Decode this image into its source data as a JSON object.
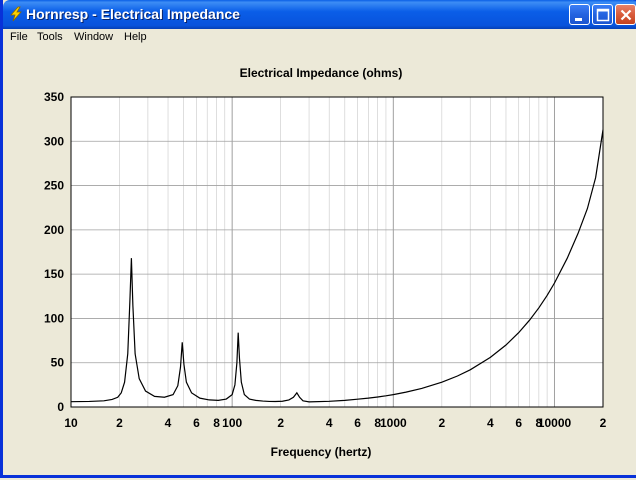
{
  "window": {
    "title": "Hornresp - Electrical Impedance",
    "icon": "lightning-bolt-icon"
  },
  "title_buttons": {
    "minimize": "minimize-icon",
    "maximize": "maximize-icon",
    "close": "close-icon"
  },
  "menu": {
    "items": [
      {
        "label": "File"
      },
      {
        "label": "Tools"
      },
      {
        "label": "Window"
      },
      {
        "label": "Help"
      }
    ]
  },
  "colors": {
    "titlebar": "#0A5EE8",
    "frame": "#0831D9",
    "close_button": "#D95B3B",
    "background": "#ECE9D8",
    "plot_background": "#FFFFFF",
    "curve": "#000000",
    "grid": "#C8C8C8"
  },
  "chart_data": {
    "type": "line",
    "title": "Electrical Impedance (ohms)",
    "xlabel": "Frequency (hertz)",
    "ylabel": "",
    "x_scale": "log",
    "xlim": [
      10,
      20000
    ],
    "ylim": [
      0,
      350
    ],
    "grid": true,
    "legend": "none",
    "y_ticks": [
      0,
      50,
      100,
      150,
      200,
      250,
      300,
      350
    ],
    "x_tick_labels": [
      {
        "value": 10,
        "label": "10"
      },
      {
        "value": 20,
        "label": "2"
      },
      {
        "value": 40,
        "label": "4"
      },
      {
        "value": 60,
        "label": "6"
      },
      {
        "value": 80,
        "label": "8"
      },
      {
        "value": 100,
        "label": "100"
      },
      {
        "value": 200,
        "label": "2"
      },
      {
        "value": 400,
        "label": "4"
      },
      {
        "value": 600,
        "label": "6"
      },
      {
        "value": 800,
        "label": "8"
      },
      {
        "value": 1000,
        "label": "1000"
      },
      {
        "value": 2000,
        "label": "2"
      },
      {
        "value": 4000,
        "label": "4"
      },
      {
        "value": 6000,
        "label": "6"
      },
      {
        "value": 8000,
        "label": "8"
      },
      {
        "value": 10000,
        "label": "10000"
      },
      {
        "value": 20000,
        "label": "2"
      }
    ],
    "series": [
      {
        "points": [
          [
            10,
            6
          ],
          [
            13,
            6.3
          ],
          [
            16,
            7
          ],
          [
            18,
            8.5
          ],
          [
            19.5,
            11
          ],
          [
            20.5,
            16
          ],
          [
            21.5,
            28
          ],
          [
            22.5,
            60
          ],
          [
            23.2,
            120
          ],
          [
            23.7,
            168
          ],
          [
            24.2,
            115
          ],
          [
            25,
            60
          ],
          [
            26.5,
            32
          ],
          [
            29,
            18
          ],
          [
            33,
            12
          ],
          [
            38,
            11
          ],
          [
            43,
            14
          ],
          [
            46,
            24
          ],
          [
            47.8,
            45
          ],
          [
            49,
            73
          ],
          [
            50.2,
            48
          ],
          [
            52,
            28
          ],
          [
            56,
            16
          ],
          [
            63,
            10
          ],
          [
            72,
            8
          ],
          [
            82,
            7.5
          ],
          [
            92,
            9
          ],
          [
            100,
            14
          ],
          [
            104,
            25
          ],
          [
            107,
            50
          ],
          [
            109,
            84
          ],
          [
            111,
            55
          ],
          [
            114,
            28
          ],
          [
            119,
            14
          ],
          [
            128,
            9
          ],
          [
            140,
            7.5
          ],
          [
            155,
            6.7
          ],
          [
            170,
            6.3
          ],
          [
            185,
            6.2
          ],
          [
            205,
            6.5
          ],
          [
            225,
            8
          ],
          [
            240,
            11
          ],
          [
            252,
            16
          ],
          [
            262,
            11
          ],
          [
            275,
            7
          ],
          [
            300,
            5.8
          ],
          [
            400,
            6.4
          ],
          [
            500,
            7.5
          ],
          [
            600,
            8.8
          ],
          [
            700,
            10
          ],
          [
            800,
            11.3
          ],
          [
            900,
            12.6
          ],
          [
            1000,
            14
          ],
          [
            1200,
            16.8
          ],
          [
            1500,
            21
          ],
          [
            2000,
            28
          ],
          [
            2500,
            35
          ],
          [
            3000,
            42
          ],
          [
            4000,
            56
          ],
          [
            5000,
            70
          ],
          [
            6000,
            84
          ],
          [
            7000,
            98
          ],
          [
            8000,
            112
          ],
          [
            9000,
            126
          ],
          [
            10000,
            140
          ],
          [
            12000,
            168
          ],
          [
            14000,
            196
          ],
          [
            16000,
            224
          ],
          [
            18000,
            259
          ],
          [
            20000,
            313
          ]
        ]
      }
    ]
  }
}
